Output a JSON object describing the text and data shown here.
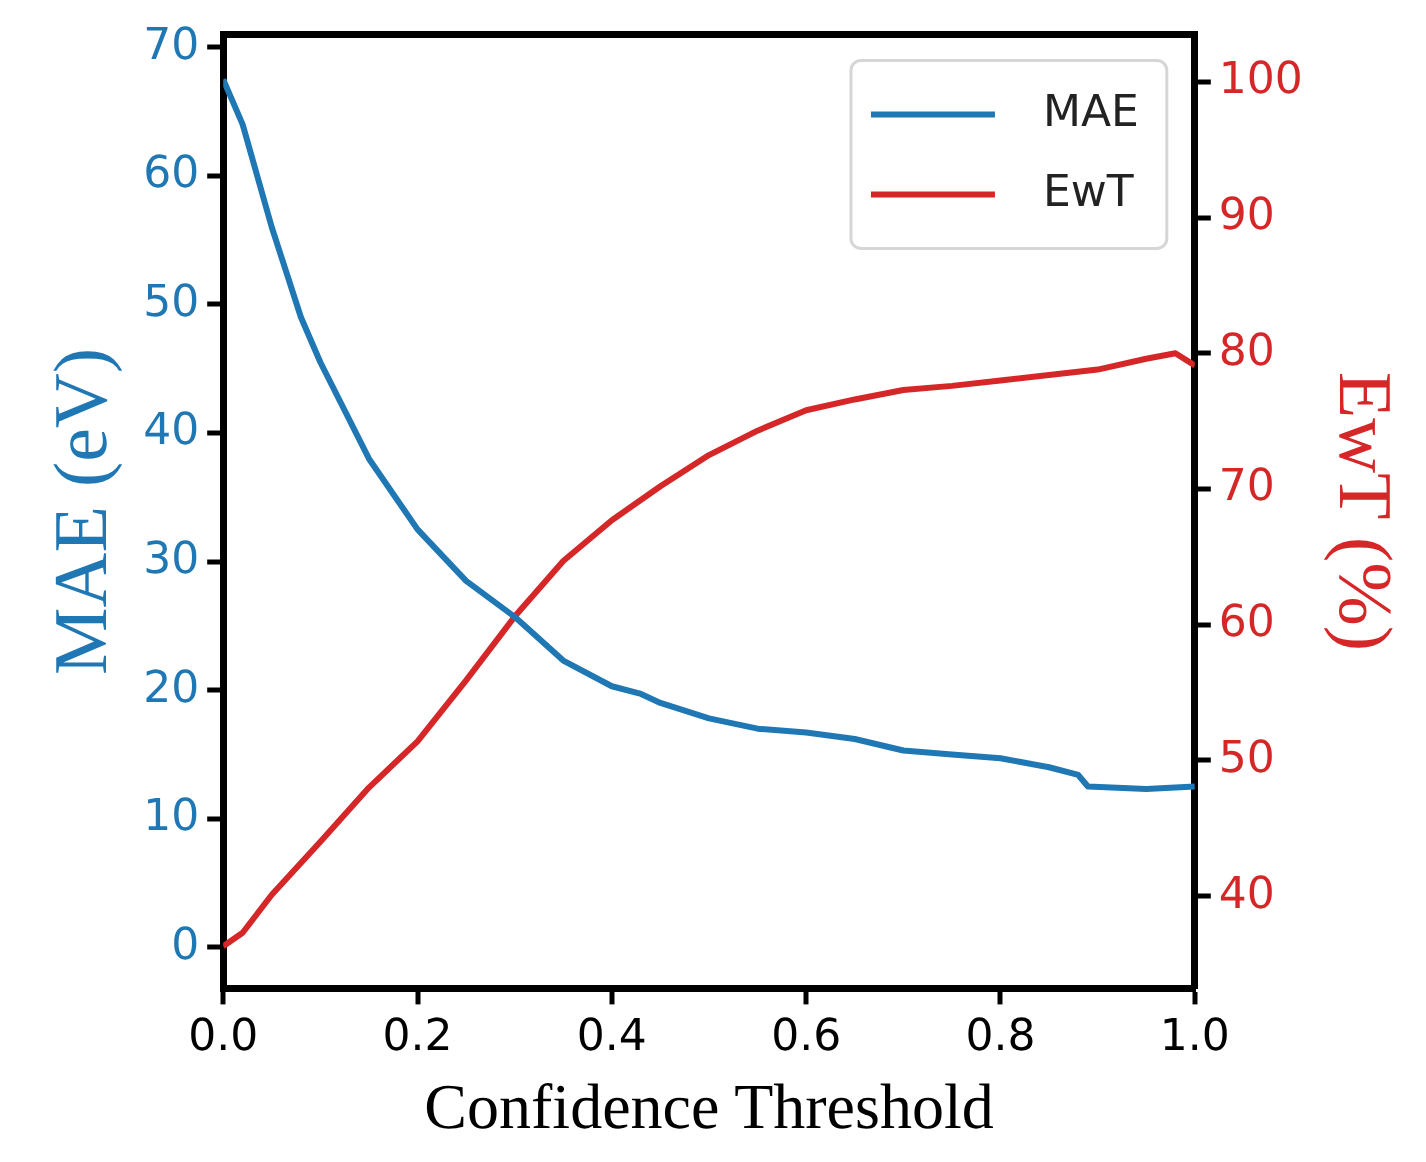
{
  "chart_data": {
    "type": "line",
    "xlabel": "Confidence Threshold",
    "ylabel": "MAE (eV)",
    "y2label": "EwT (%)",
    "x": [
      0,
      0.02,
      0.05,
      0.08,
      0.1,
      0.15,
      0.2,
      0.25,
      0.3,
      0.35,
      0.4,
      0.43,
      0.45,
      0.5,
      0.55,
      0.6,
      0.65,
      0.7,
      0.75,
      0.8,
      0.85,
      0.88,
      0.89,
      0.95,
      1.0
    ],
    "series": [
      {
        "name": "MAE",
        "color": "#1f77b4",
        "values": [
          67.5,
          64,
          56,
          49,
          45.5,
          38,
          32.5,
          28.5,
          25.7,
          22.3,
          20.3,
          19.7,
          19,
          17.8,
          17,
          16.7,
          16.2,
          15.3,
          15,
          14.7,
          14,
          13.4,
          12.5,
          12.3,
          12.5
        ]
      },
      {
        "name": "EwT",
        "color": "#d62728",
        "axis": "y2",
        "x": [
          0,
          0.02,
          0.05,
          0.1,
          0.15,
          0.2,
          0.25,
          0.3,
          0.35,
          0.4,
          0.45,
          0.5,
          0.55,
          0.6,
          0.65,
          0.7,
          0.75,
          0.8,
          0.85,
          0.9,
          0.95,
          0.98,
          1.0
        ],
        "values": [
          36.3,
          37.3,
          40.1,
          44,
          48,
          51.4,
          55.9,
          60.6,
          64.7,
          67.7,
          70.2,
          72.5,
          74.3,
          75.8,
          76.6,
          77.3,
          77.6,
          78,
          78.4,
          78.8,
          79.6,
          80,
          79.1
        ]
      }
    ],
    "xlim": [
      0,
      1
    ],
    "xticks": [
      {
        "value": 0,
        "label": "0.0"
      },
      0.2,
      0.4,
      0.6,
      0.8,
      {
        "value": 1,
        "label": "1.0"
      }
    ],
    "ylim": [
      -3.2,
      71
    ],
    "yticks": [
      0,
      10,
      20,
      30,
      40,
      50,
      60,
      70
    ],
    "y2lim": [
      33.2,
      103.5
    ],
    "y2ticks": [
      40,
      50,
      60,
      70,
      80,
      90,
      100
    ],
    "legend": "top right",
    "grid": false,
    "marker": "none",
    "line_style": "solid"
  }
}
